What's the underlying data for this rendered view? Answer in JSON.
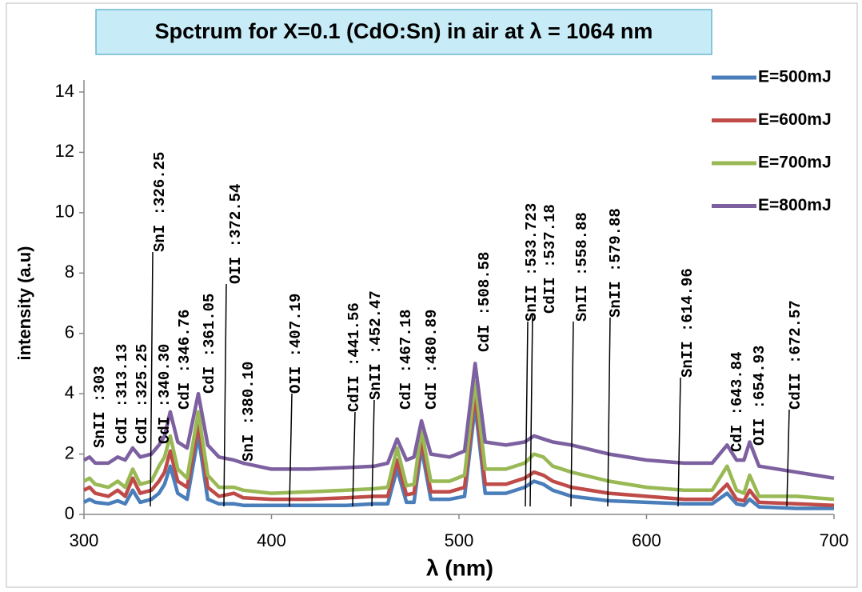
{
  "chart_data": {
    "type": "line",
    "title": "Spctrum for  X=0.1 (CdO:Sn) in air at λ = 1064 nm",
    "xlabel": "λ (nm)",
    "ylabel": "intensity (a.u)",
    "x": [
      300,
      303,
      306,
      313,
      318,
      322,
      326,
      330,
      336,
      340,
      343,
      346,
      350,
      355,
      361,
      366,
      372,
      380,
      385,
      400,
      420,
      440,
      455,
      462,
      467,
      472,
      476,
      480,
      485,
      495,
      503,
      508.6,
      514,
      525,
      535,
      540,
      545,
      550,
      560,
      580,
      600,
      620,
      635,
      643,
      648,
      652,
      655,
      660,
      680,
      700
    ],
    "series": [
      {
        "name": "E=500mJ",
        "color": "#4a7ebb",
        "values": [
          0.4,
          0.5,
          0.4,
          0.35,
          0.45,
          0.35,
          0.8,
          0.4,
          0.5,
          0.7,
          1.0,
          1.6,
          0.7,
          0.5,
          2.6,
          0.5,
          0.35,
          0.35,
          0.3,
          0.3,
          0.3,
          0.3,
          0.35,
          0.35,
          1.5,
          0.4,
          0.4,
          2.2,
          0.5,
          0.5,
          0.6,
          3.6,
          0.7,
          0.7,
          0.9,
          1.1,
          1.0,
          0.8,
          0.6,
          0.45,
          0.4,
          0.35,
          0.35,
          0.7,
          0.35,
          0.3,
          0.5,
          0.25,
          0.2,
          0.2
        ]
      },
      {
        "name": "E=600mJ",
        "color": "#be4b48",
        "values": [
          0.8,
          0.9,
          0.7,
          0.6,
          0.8,
          0.6,
          1.2,
          0.7,
          0.8,
          1.1,
          1.4,
          2.1,
          1.1,
          0.9,
          3.0,
          0.9,
          0.6,
          0.7,
          0.55,
          0.5,
          0.5,
          0.55,
          0.6,
          0.6,
          1.8,
          0.65,
          0.7,
          2.5,
          0.75,
          0.75,
          0.9,
          4.0,
          1.0,
          1.0,
          1.2,
          1.4,
          1.3,
          1.1,
          0.9,
          0.7,
          0.6,
          0.5,
          0.5,
          1.0,
          0.5,
          0.45,
          0.8,
          0.4,
          0.35,
          0.3
        ]
      },
      {
        "name": "E=700mJ",
        "color": "#98b954",
        "values": [
          1.1,
          1.2,
          1.0,
          0.9,
          1.1,
          0.9,
          1.5,
          1.0,
          1.1,
          1.6,
          1.9,
          2.6,
          1.5,
          1.2,
          3.4,
          1.3,
          0.9,
          0.9,
          0.8,
          0.7,
          0.75,
          0.8,
          0.85,
          0.9,
          2.2,
          0.95,
          1.0,
          2.8,
          1.1,
          1.1,
          1.3,
          4.4,
          1.5,
          1.5,
          1.7,
          2.0,
          1.9,
          1.6,
          1.4,
          1.1,
          0.9,
          0.8,
          0.8,
          1.6,
          0.8,
          0.7,
          1.3,
          0.6,
          0.6,
          0.5
        ]
      },
      {
        "name": "E=800mJ",
        "color": "#7d60a0",
        "values": [
          1.8,
          1.9,
          1.7,
          1.7,
          1.9,
          1.8,
          2.2,
          1.9,
          2.0,
          2.3,
          2.6,
          3.4,
          2.4,
          2.2,
          4.0,
          2.3,
          1.9,
          1.8,
          1.7,
          1.5,
          1.5,
          1.55,
          1.6,
          1.7,
          2.5,
          1.8,
          1.9,
          3.1,
          2.0,
          1.9,
          2.1,
          5.0,
          2.4,
          2.3,
          2.4,
          2.6,
          2.5,
          2.4,
          2.3,
          2.0,
          1.8,
          1.7,
          1.7,
          2.3,
          1.8,
          1.8,
          2.4,
          1.6,
          1.4,
          1.2
        ]
      }
    ],
    "xlim": [
      300,
      700
    ],
    "xticks": [
      300,
      400,
      500,
      600,
      700
    ],
    "ylim": [
      0,
      14
    ],
    "yticks": [
      0,
      2,
      4,
      6,
      8,
      10,
      12,
      14
    ],
    "legend": "upper right",
    "annotations": [
      "SnII :303",
      "CdI :313.13",
      "CdI :325.25",
      "SnI :326.25",
      "CdI :340.30",
      "CdI :346.76",
      "CdI :361.05",
      "OII :372.54",
      "SnI :380.10",
      "OII :407.19",
      "CdII :441.56",
      "SnII :452.47",
      "CdI :467.18",
      "CdI :480.89",
      "CdI :508.58",
      "SnII :533.723",
      "CdII :537.18",
      "SnII :558.88",
      "SnII :579.88",
      "SnII :614.96",
      "CdI :643.84",
      "OII :654.93",
      "CdII :672.57"
    ]
  }
}
